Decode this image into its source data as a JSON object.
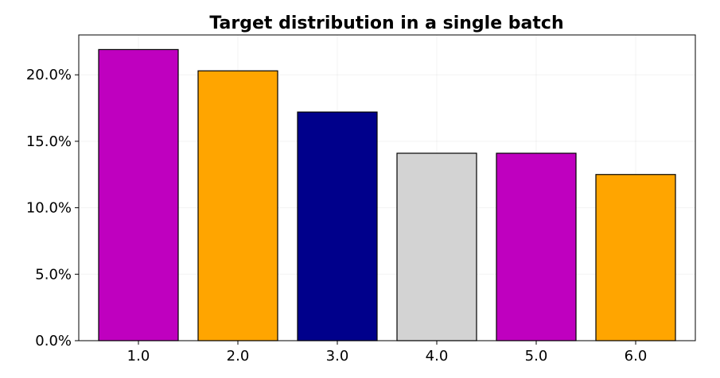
{
  "chart_data": {
    "type": "bar",
    "title": "Target distribution in a single batch",
    "xlabel": "",
    "ylabel": "",
    "categories": [
      "1.0",
      "2.0",
      "3.0",
      "4.0",
      "5.0",
      "6.0"
    ],
    "values": [
      0.219,
      0.203,
      0.172,
      0.141,
      0.141,
      0.125
    ],
    "bar_colors": [
      "#bf00bf",
      "#ffa500",
      "#00008b",
      "#d3d3d3",
      "#bf00bf",
      "#ffa500"
    ],
    "edge_color": "#000000",
    "ylim": [
      0,
      0.23
    ],
    "yticks": [
      0,
      0.05,
      0.1,
      0.15,
      0.2
    ],
    "ytick_labels": [
      "0.0%",
      "5.0%",
      "10.0%",
      "15.0%",
      "20.0%"
    ],
    "grid": true,
    "legend": false
  }
}
